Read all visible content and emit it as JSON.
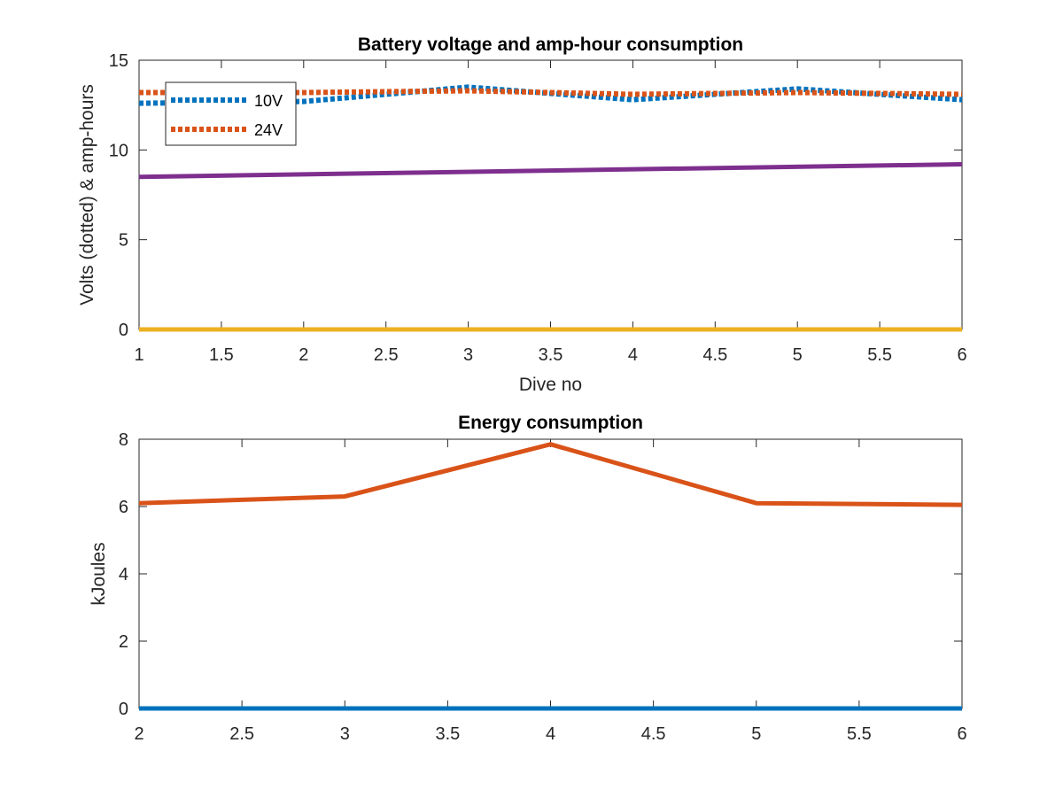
{
  "chart_data": [
    {
      "type": "line",
      "title": "Battery voltage and amp-hour consumption",
      "xlabel": "Dive no",
      "ylabel": "Volts (dotted) & amp-hours",
      "xlim": [
        1,
        6
      ],
      "ylim": [
        0,
        15
      ],
      "xticks": [
        "1",
        "1.5",
        "2",
        "2.5",
        "3",
        "3.5",
        "4",
        "4.5",
        "5",
        "5.5",
        "6"
      ],
      "yticks": [
        "0",
        "5",
        "10",
        "15"
      ],
      "grid": false,
      "legend": {
        "location": "top-left",
        "entries": [
          "10V",
          "24V"
        ]
      },
      "series": [
        {
          "name": "10V",
          "color": "#0072BD",
          "style": "dotted",
          "x": [
            1,
            2,
            3,
            4,
            5,
            6
          ],
          "values": [
            12.6,
            12.7,
            13.5,
            12.8,
            13.4,
            12.8
          ]
        },
        {
          "name": "24V",
          "color": "#D95319",
          "style": "dotted",
          "x": [
            1,
            2,
            3,
            4,
            5,
            6
          ],
          "values": [
            13.2,
            13.2,
            13.3,
            13.1,
            13.2,
            13.1
          ]
        },
        {
          "color": "#7E2F8E",
          "style": "solid",
          "x": [
            1,
            6
          ],
          "values": [
            8.5,
            9.2
          ]
        },
        {
          "color": "#EDB120",
          "style": "solid",
          "x": [
            1,
            6
          ],
          "values": [
            0,
            0
          ]
        }
      ]
    },
    {
      "type": "line",
      "title": "Energy consumption",
      "xlabel": "",
      "ylabel": "kJoules",
      "xlim": [
        2,
        6
      ],
      "ylim": [
        0,
        8
      ],
      "xticks": [
        "2",
        "2.5",
        "3",
        "3.5",
        "4",
        "4.5",
        "5",
        "5.5",
        "6"
      ],
      "yticks": [
        "0",
        "2",
        "4",
        "6",
        "8"
      ],
      "grid": false,
      "series": [
        {
          "color": "#D95319",
          "style": "solid",
          "x": [
            2,
            3,
            4,
            5,
            6
          ],
          "values": [
            6.1,
            6.3,
            7.85,
            6.1,
            6.05
          ]
        },
        {
          "color": "#0072BD",
          "style": "solid",
          "x": [
            2,
            6
          ],
          "values": [
            0,
            0
          ]
        }
      ]
    }
  ]
}
